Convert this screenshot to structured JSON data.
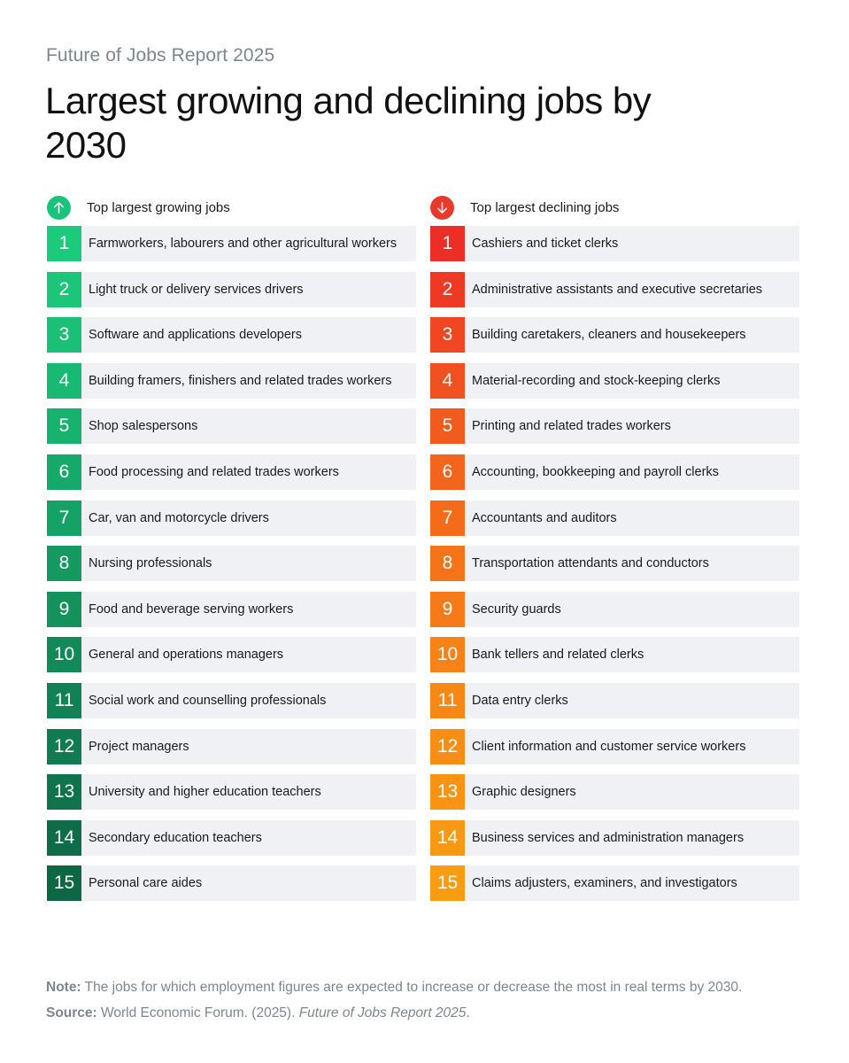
{
  "header": {
    "supertitle": "Future of Jobs Report 2025",
    "title": "Largest growing and declining jobs by 2030"
  },
  "growing": {
    "label": "Top largest growing jobs",
    "icon": "arrow-up-icon",
    "color": "#18c37a",
    "items": [
      {
        "rank": "1",
        "label": "Farmworkers, labourers and other agricultural workers",
        "color": "#1bcb7b"
      },
      {
        "rank": "2",
        "label": "Light truck or delivery services drivers",
        "color": "#1bc679"
      },
      {
        "rank": "3",
        "label": "Software and applications developers",
        "color": "#19c076"
      },
      {
        "rank": "4",
        "label": "Building framers, finishers and related trades workers",
        "color": "#18b972"
      },
      {
        "rank": "5",
        "label": "Shop salespersons",
        "color": "#17b26e"
      },
      {
        "rank": "6",
        "label": "Food processing and related trades workers",
        "color": "#16aa6a"
      },
      {
        "rank": "7",
        "label": "Car, van and motorcycle drivers",
        "color": "#15a266"
      },
      {
        "rank": "8",
        "label": "Nursing professionals",
        "color": "#149a61"
      },
      {
        "rank": "9",
        "label": "Food and beverage serving workers",
        "color": "#13925c"
      },
      {
        "rank": "10",
        "label": "General and operations managers",
        "color": "#128a58"
      },
      {
        "rank": "11",
        "label": "Social work and counselling professionals",
        "color": "#118254"
      },
      {
        "rank": "12",
        "label": "Project managers",
        "color": "#107b50"
      },
      {
        "rank": "13",
        "label": "University and higher education teachers",
        "color": "#0f744c"
      },
      {
        "rank": "14",
        "label": "Secondary education teachers",
        "color": "#0e6d48"
      },
      {
        "rank": "15",
        "label": "Personal care aides",
        "color": "#0d6744"
      }
    ]
  },
  "declining": {
    "label": "Top largest declining jobs",
    "icon": "arrow-down-icon",
    "color": "#e83a2c",
    "items": [
      {
        "rank": "1",
        "label": "Cashiers and ticket clerks",
        "color": "#ec2e26"
      },
      {
        "rank": "2",
        "label": "Administrative assistants and executive secretaries",
        "color": "#ee3a24"
      },
      {
        "rank": "3",
        "label": "Building caretakers, cleaners and housekeepers",
        "color": "#f04622"
      },
      {
        "rank": "4",
        "label": "Material-recording and stock-keeping clerks",
        "color": "#f15120"
      },
      {
        "rank": "5",
        "label": "Printing and related trades workers",
        "color": "#f25b1e"
      },
      {
        "rank": "6",
        "label": "Accounting, bookkeeping and payroll clerks",
        "color": "#f3641c"
      },
      {
        "rank": "7",
        "label": "Accountants and auditors",
        "color": "#f46c1a"
      },
      {
        "rank": "8",
        "label": "Transportation attendants and conductors",
        "color": "#f57419"
      },
      {
        "rank": "9",
        "label": "Security guards",
        "color": "#f67b18"
      },
      {
        "rank": "10",
        "label": "Bank tellers and related clerks",
        "color": "#f78217"
      },
      {
        "rank": "11",
        "label": "Data entry clerks",
        "color": "#f78816"
      },
      {
        "rank": "12",
        "label": "Client information and customer service workers",
        "color": "#f88e15"
      },
      {
        "rank": "13",
        "label": "Graphic designers",
        "color": "#f89314"
      },
      {
        "rank": "14",
        "label": "Business services and administration managers",
        "color": "#f99813"
      },
      {
        "rank": "15",
        "label": "Claims adjusters, examiners, and investigators",
        "color": "#f99c12"
      }
    ]
  },
  "footer": {
    "note_label": "Note:",
    "note_text": "The jobs for which employment figures are expected to increase or decrease the most in real terms by 2030.",
    "source_label": "Source:",
    "source_text": "World Economic Forum. (2025).",
    "source_title": "Future of Jobs Report 2025",
    "source_end": "."
  }
}
